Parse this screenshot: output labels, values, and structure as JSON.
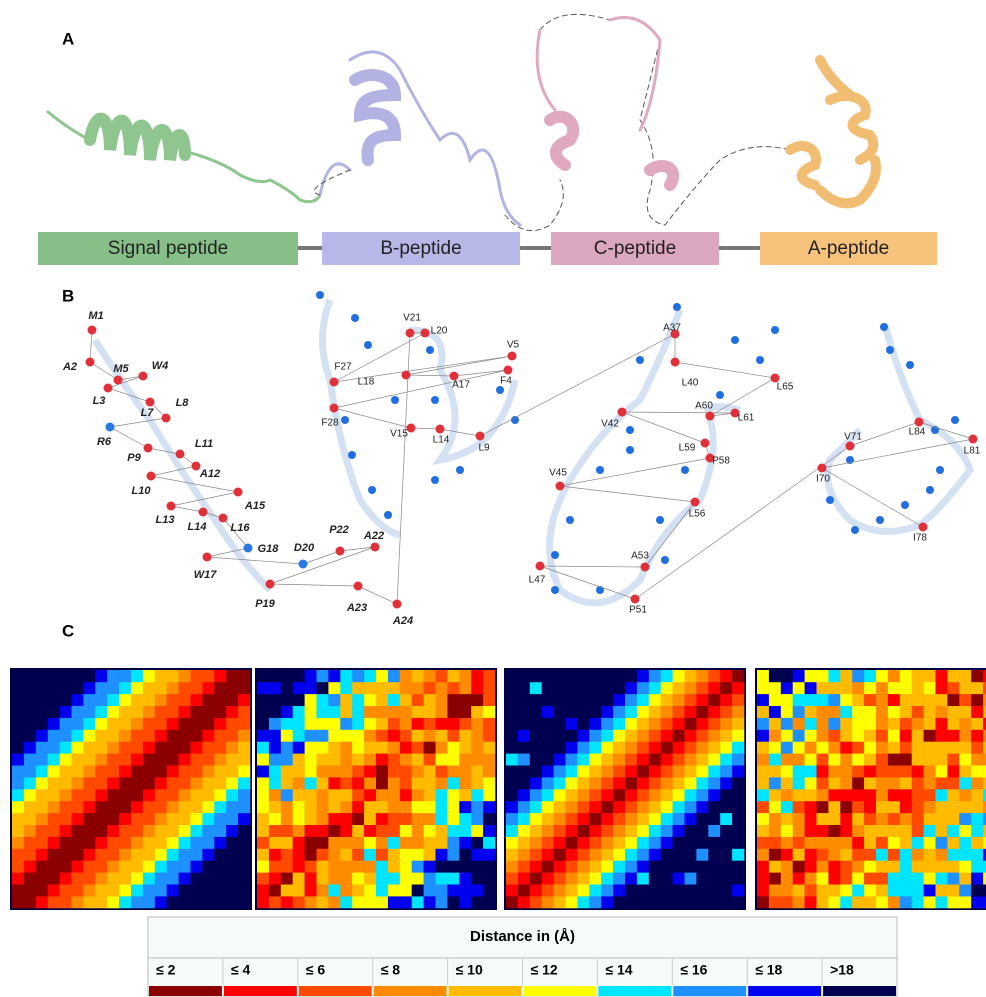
{
  "panel_a": {
    "label": "A",
    "segments": [
      "Signal peptide",
      "B-peptide",
      "C-peptide",
      "A-peptide"
    ]
  },
  "panel_b": {
    "label": "B",
    "residues": [
      "M1",
      "A2",
      "M5",
      "W4",
      "L3",
      "L7",
      "L8",
      "R6",
      "P9",
      "L11",
      "A12",
      "L10",
      "A15",
      "L13",
      "L14",
      "L16",
      "G18",
      "W17",
      "D20",
      "P22",
      "A22",
      "P19",
      "A23",
      "A24",
      "V21",
      "L20",
      "F27",
      "V5",
      "L18",
      "A17",
      "F4",
      "F28",
      "V15",
      "L14",
      "L9",
      "A37",
      "L40",
      "L65",
      "A60",
      "L61",
      "V42",
      "L59",
      "P58",
      "V45",
      "L56",
      "A53",
      "L47",
      "P51",
      "V71",
      "L84",
      "L81",
      "I70",
      "I78"
    ]
  },
  "panel_c": {
    "label": "C",
    "legend": {
      "title": "Distance in (Å)",
      "bins": [
        {
          "label": "≤ 2",
          "color": "#8b0000"
        },
        {
          "label": "≤ 4",
          "color": "#ff0000"
        },
        {
          "label": "≤ 6",
          "color": "#ff4a00"
        },
        {
          "label": "≤ 8",
          "color": "#ff8c00"
        },
        {
          "label": "≤ 10",
          "color": "#ffbb00"
        },
        {
          "label": "≤ 12",
          "color": "#ffff00"
        },
        {
          "label": "≤ 14",
          "color": "#00e5ff"
        },
        {
          "label": "≤ 16",
          "color": "#1e90ff"
        },
        {
          "label": "≤ 18",
          "color": "#0000ee"
        },
        {
          "label": ">18",
          "color": "#000050"
        }
      ]
    }
  }
}
